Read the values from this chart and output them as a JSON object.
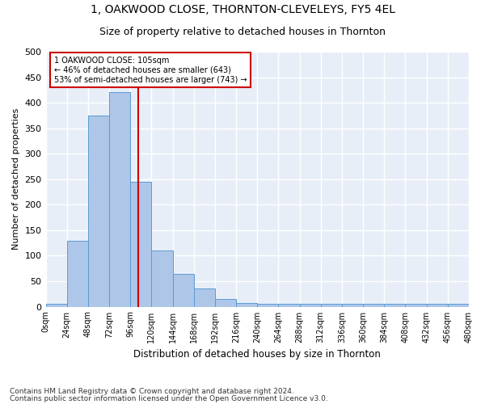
{
  "title1": "1, OAKWOOD CLOSE, THORNTON-CLEVELEYS, FY5 4EL",
  "title2": "Size of property relative to detached houses in Thornton",
  "xlabel": "Distribution of detached houses by size in Thornton",
  "ylabel": "Number of detached properties",
  "bin_edges": [
    0,
    24,
    48,
    72,
    96,
    120,
    144,
    168,
    192,
    216,
    240,
    264,
    288,
    312,
    336,
    360,
    384,
    408,
    432,
    456,
    480
  ],
  "bar_heights": [
    5,
    130,
    375,
    420,
    245,
    110,
    65,
    35,
    15,
    8,
    6,
    5,
    5,
    5,
    5,
    5,
    5,
    5,
    5,
    5
  ],
  "bar_color": "#aec6e8",
  "bar_edge_color": "#5b9bd5",
  "property_size": 105,
  "red_line_color": "#cc0000",
  "annotation_box_edge": "#cc0000",
  "annotation_line1": "1 OAKWOOD CLOSE: 105sqm",
  "annotation_line2": "← 46% of detached houses are smaller (643)",
  "annotation_line3": "53% of semi-detached houses are larger (743) →",
  "ylim": [
    0,
    500
  ],
  "yticks": [
    0,
    50,
    100,
    150,
    200,
    250,
    300,
    350,
    400,
    450,
    500
  ],
  "footer1": "Contains HM Land Registry data © Crown copyright and database right 2024.",
  "footer2": "Contains public sector information licensed under the Open Government Licence v3.0.",
  "background_color": "#e8eef8",
  "grid_color": "#ffffff",
  "title1_fontsize": 10,
  "title2_fontsize": 9
}
